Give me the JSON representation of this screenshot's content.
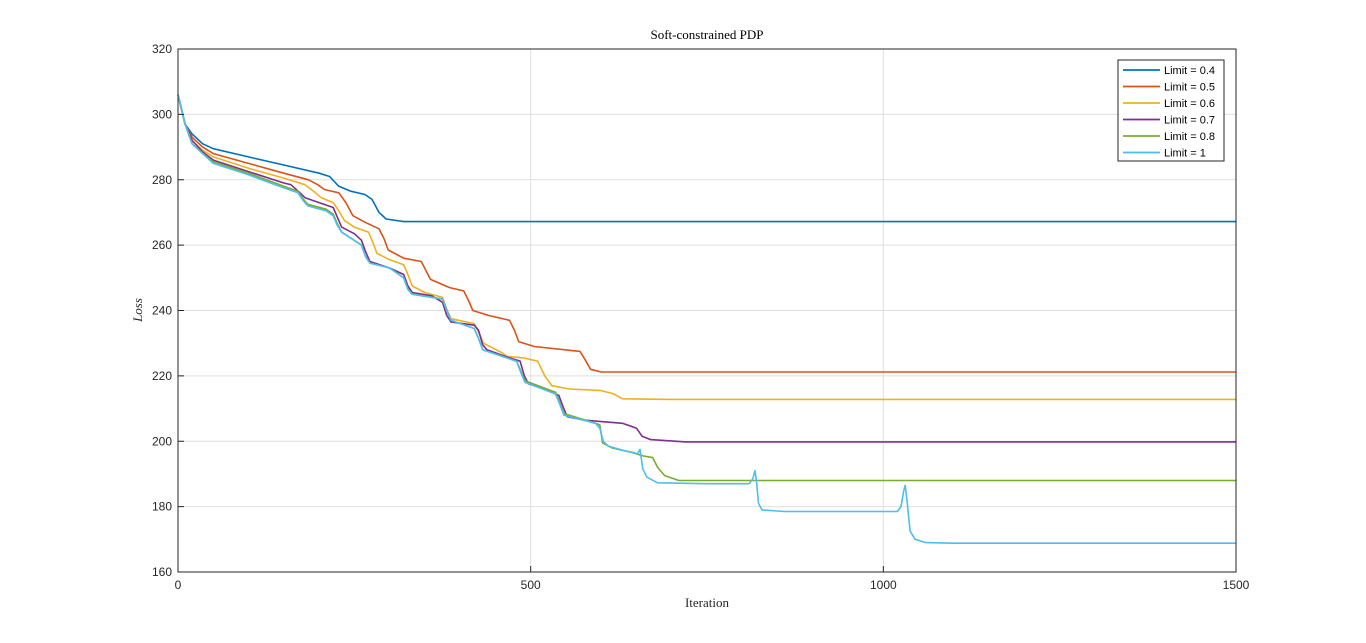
{
  "chart_data": {
    "type": "line",
    "title": "Soft-constrained PDP",
    "xlabel": "Iteration",
    "ylabel": "Loss",
    "xlim": [
      0,
      1500
    ],
    "ylim": [
      160,
      320
    ],
    "xticks": [
      0,
      500,
      1000,
      1500
    ],
    "yticks": [
      160,
      180,
      200,
      220,
      240,
      260,
      280,
      300,
      320
    ],
    "grid": true,
    "legend_position": "top-right",
    "series": [
      {
        "name": "Limit = 0.4",
        "color": "#0072BD",
        "points": [
          [
            0,
            306
          ],
          [
            10,
            297
          ],
          [
            20,
            294
          ],
          [
            35,
            291
          ],
          [
            50,
            289.5
          ],
          [
            100,
            287
          ],
          [
            150,
            284.5
          ],
          [
            200,
            282
          ],
          [
            215,
            281
          ],
          [
            228,
            278
          ],
          [
            245,
            276.5
          ],
          [
            265,
            275.5
          ],
          [
            275,
            274
          ],
          [
            285,
            270
          ],
          [
            295,
            268
          ],
          [
            320,
            267.2
          ],
          [
            400,
            267.2
          ],
          [
            1500,
            267.2
          ]
        ]
      },
      {
        "name": "Limit = 0.5",
        "color": "#D95319",
        "points": [
          [
            0,
            306
          ],
          [
            10,
            297
          ],
          [
            20,
            293
          ],
          [
            35,
            290
          ],
          [
            50,
            288
          ],
          [
            100,
            285
          ],
          [
            150,
            282
          ],
          [
            185,
            280
          ],
          [
            198,
            278.5
          ],
          [
            208,
            277
          ],
          [
            228,
            276
          ],
          [
            238,
            273
          ],
          [
            248,
            269
          ],
          [
            265,
            267
          ],
          [
            285,
            265
          ],
          [
            292,
            262
          ],
          [
            298,
            258.5
          ],
          [
            320,
            256
          ],
          [
            345,
            255
          ],
          [
            352,
            252
          ],
          [
            358,
            249.5
          ],
          [
            385,
            247
          ],
          [
            405,
            246
          ],
          [
            412,
            243
          ],
          [
            418,
            240
          ],
          [
            440,
            238.5
          ],
          [
            470,
            237
          ],
          [
            477,
            234
          ],
          [
            483,
            230.5
          ],
          [
            505,
            229
          ],
          [
            570,
            227.5
          ],
          [
            577,
            225
          ],
          [
            585,
            222
          ],
          [
            600,
            221.2
          ],
          [
            700,
            221.2
          ],
          [
            1500,
            221.2
          ]
        ]
      },
      {
        "name": "Limit = 0.6",
        "color": "#EDB120",
        "points": [
          [
            0,
            306
          ],
          [
            10,
            297
          ],
          [
            20,
            292
          ],
          [
            35,
            289
          ],
          [
            50,
            287
          ],
          [
            100,
            283.5
          ],
          [
            150,
            280.5
          ],
          [
            180,
            278.5
          ],
          [
            195,
            276
          ],
          [
            203,
            274.5
          ],
          [
            220,
            273
          ],
          [
            228,
            270.5
          ],
          [
            236,
            267.5
          ],
          [
            250,
            265.5
          ],
          [
            270,
            264
          ],
          [
            276,
            261
          ],
          [
            282,
            257.5
          ],
          [
            300,
            255.5
          ],
          [
            320,
            254
          ],
          [
            326,
            251
          ],
          [
            332,
            247.5
          ],
          [
            350,
            245.5
          ],
          [
            375,
            244
          ],
          [
            381,
            240.5
          ],
          [
            387,
            237.5
          ],
          [
            420,
            236
          ],
          [
            427,
            233
          ],
          [
            433,
            230
          ],
          [
            460,
            227
          ],
          [
            466,
            226
          ],
          [
            490,
            225.5
          ],
          [
            510,
            224.5
          ],
          [
            520,
            220
          ],
          [
            530,
            217
          ],
          [
            555,
            216
          ],
          [
            600,
            215.5
          ],
          [
            618,
            214.5
          ],
          [
            630,
            213
          ],
          [
            700,
            212.8
          ],
          [
            1500,
            212.8
          ]
        ]
      },
      {
        "name": "Limit = 0.7",
        "color": "#7E2F8E",
        "points": [
          [
            0,
            306
          ],
          [
            10,
            297
          ],
          [
            20,
            292
          ],
          [
            35,
            288.5
          ],
          [
            50,
            286
          ],
          [
            100,
            282.5
          ],
          [
            150,
            279
          ],
          [
            160,
            278.5
          ],
          [
            173,
            276
          ],
          [
            180,
            274.5
          ],
          [
            200,
            273
          ],
          [
            220,
            271.5
          ],
          [
            226,
            268.5
          ],
          [
            232,
            265.5
          ],
          [
            250,
            263.5
          ],
          [
            260,
            261.5
          ],
          [
            266,
            258
          ],
          [
            272,
            255
          ],
          [
            300,
            253
          ],
          [
            320,
            251
          ],
          [
            326,
            247.5
          ],
          [
            332,
            245.5
          ],
          [
            360,
            244.5
          ],
          [
            375,
            242.5
          ],
          [
            381,
            238.5
          ],
          [
            387,
            236.5
          ],
          [
            420,
            235.5
          ],
          [
            426,
            234
          ],
          [
            432,
            229.5
          ],
          [
            438,
            228
          ],
          [
            470,
            225.5
          ],
          [
            485,
            224.5
          ],
          [
            491,
            220
          ],
          [
            497,
            217.5
          ],
          [
            520,
            216
          ],
          [
            540,
            214
          ],
          [
            546,
            210.5
          ],
          [
            552,
            207.5
          ],
          [
            575,
            206.5
          ],
          [
            600,
            206
          ],
          [
            630,
            205.5
          ],
          [
            650,
            204
          ],
          [
            658,
            201.5
          ],
          [
            670,
            200.5
          ],
          [
            720,
            199.8
          ],
          [
            1500,
            199.8
          ]
        ]
      },
      {
        "name": "Limit = 0.8",
        "color": "#77AC30",
        "points": [
          [
            0,
            306
          ],
          [
            10,
            297
          ],
          [
            20,
            291
          ],
          [
            35,
            288
          ],
          [
            50,
            285.5
          ],
          [
            100,
            282
          ],
          [
            150,
            278
          ],
          [
            170,
            276.5
          ],
          [
            178,
            274
          ],
          [
            184,
            272.5
          ],
          [
            210,
            271
          ],
          [
            220,
            269.5
          ],
          [
            226,
            266.5
          ],
          [
            232,
            264
          ],
          [
            260,
            260
          ],
          [
            266,
            256.5
          ],
          [
            272,
            254.5
          ],
          [
            300,
            253
          ],
          [
            320,
            250
          ],
          [
            326,
            246.5
          ],
          [
            332,
            245
          ],
          [
            375,
            243.5
          ],
          [
            381,
            240
          ],
          [
            387,
            237
          ],
          [
            420,
            234.5
          ],
          [
            426,
            231.5
          ],
          [
            432,
            228
          ],
          [
            480,
            224.5
          ],
          [
            486,
            221.5
          ],
          [
            492,
            218.5
          ],
          [
            535,
            215
          ],
          [
            541,
            212
          ],
          [
            547,
            208.5
          ],
          [
            592,
            205.5
          ],
          [
            598,
            205
          ],
          [
            602,
            199.5
          ],
          [
            615,
            198
          ],
          [
            645,
            196.5
          ],
          [
            660,
            195.5
          ],
          [
            673,
            195
          ],
          [
            680,
            192
          ],
          [
            690,
            189.5
          ],
          [
            710,
            188
          ],
          [
            1500,
            188
          ]
        ]
      },
      {
        "name": "Limit = 1",
        "color": "#4DBEEE",
        "points": [
          [
            0,
            306
          ],
          [
            10,
            297
          ],
          [
            20,
            291
          ],
          [
            35,
            288
          ],
          [
            50,
            285
          ],
          [
            100,
            281.5
          ],
          [
            150,
            277.5
          ],
          [
            170,
            276
          ],
          [
            178,
            273.5
          ],
          [
            184,
            272
          ],
          [
            210,
            270.5
          ],
          [
            220,
            269
          ],
          [
            226,
            266
          ],
          [
            232,
            264
          ],
          [
            260,
            260
          ],
          [
            266,
            256.5
          ],
          [
            272,
            254.5
          ],
          [
            300,
            253
          ],
          [
            320,
            250
          ],
          [
            326,
            246.5
          ],
          [
            332,
            245
          ],
          [
            375,
            243.5
          ],
          [
            381,
            240
          ],
          [
            387,
            237
          ],
          [
            420,
            234.5
          ],
          [
            426,
            231.5
          ],
          [
            432,
            228
          ],
          [
            480,
            224.5
          ],
          [
            486,
            221
          ],
          [
            492,
            218
          ],
          [
            535,
            214.5
          ],
          [
            541,
            211.5
          ],
          [
            547,
            208
          ],
          [
            592,
            205.5
          ],
          [
            598,
            204
          ],
          [
            603,
            200
          ],
          [
            610,
            198.5
          ],
          [
            635,
            197
          ],
          [
            647,
            196.5
          ],
          [
            651,
            196
          ],
          [
            655,
            197.5
          ],
          [
            659,
            191.5
          ],
          [
            665,
            189
          ],
          [
            680,
            187.3
          ],
          [
            750,
            187
          ],
          [
            810,
            187
          ],
          [
            815,
            188.5
          ],
          [
            818,
            191
          ],
          [
            820,
            188
          ],
          [
            823,
            181
          ],
          [
            828,
            179
          ],
          [
            860,
            178.5
          ],
          [
            920,
            178.5
          ],
          [
            1020,
            178.5
          ],
          [
            1025,
            180
          ],
          [
            1029,
            185
          ],
          [
            1031,
            186.5
          ],
          [
            1034,
            181
          ],
          [
            1038,
            172.5
          ],
          [
            1045,
            170
          ],
          [
            1060,
            169
          ],
          [
            1100,
            168.8
          ],
          [
            1500,
            168.8
          ]
        ]
      }
    ]
  }
}
